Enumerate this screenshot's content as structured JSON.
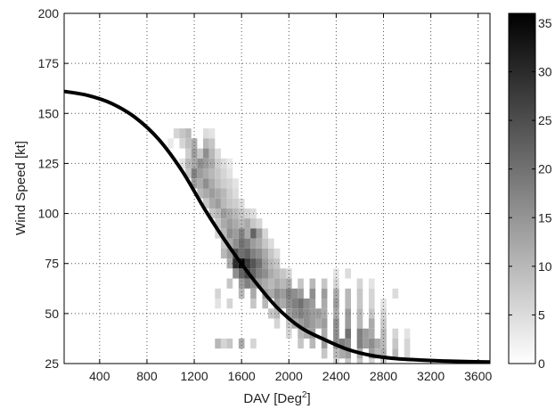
{
  "chart_data": {
    "type": "heatmap",
    "xlabel": "DAV [Deg",
    "xlabel_sup": "2",
    "xlabel_suffix": "]",
    "ylabel": "Wind Speed [kt]",
    "xlim": [
      100,
      3700
    ],
    "ylim": [
      25,
      200
    ],
    "xticks": [
      400,
      800,
      1200,
      1600,
      2000,
      2400,
      2800,
      3200,
      3600
    ],
    "yticks": [
      25,
      50,
      75,
      100,
      125,
      150,
      175,
      200
    ],
    "grid": true,
    "colormap": "gray-reversed",
    "colorbar": {
      "min": 0,
      "max": 36,
      "ticks": [
        0,
        5,
        10,
        15,
        20,
        25,
        30,
        35
      ]
    },
    "heatmap_bin": {
      "dx": 50,
      "dy": 5
    },
    "heatmap_cells": [
      [
        1050,
        140,
        6
      ],
      [
        1100,
        140,
        8
      ],
      [
        1150,
        140,
        10
      ],
      [
        1300,
        140,
        5
      ],
      [
        1350,
        140,
        4
      ],
      [
        1000,
        135,
        3
      ],
      [
        1100,
        135,
        6
      ],
      [
        1150,
        135,
        9
      ],
      [
        1200,
        135,
        12
      ],
      [
        1300,
        135,
        10
      ],
      [
        1350,
        135,
        8
      ],
      [
        1150,
        130,
        7
      ],
      [
        1200,
        130,
        14
      ],
      [
        1250,
        130,
        8
      ],
      [
        1300,
        130,
        16
      ],
      [
        1350,
        130,
        10
      ],
      [
        1400,
        130,
        5
      ],
      [
        1100,
        125,
        4
      ],
      [
        1150,
        125,
        10
      ],
      [
        1200,
        125,
        12
      ],
      [
        1250,
        125,
        16
      ],
      [
        1300,
        125,
        14
      ],
      [
        1350,
        125,
        12
      ],
      [
        1400,
        125,
        7
      ],
      [
        1450,
        125,
        5
      ],
      [
        1500,
        125,
        3
      ],
      [
        1150,
        120,
        8
      ],
      [
        1200,
        120,
        18
      ],
      [
        1250,
        120,
        14
      ],
      [
        1300,
        120,
        12
      ],
      [
        1350,
        120,
        10
      ],
      [
        1400,
        120,
        8
      ],
      [
        1450,
        120,
        6
      ],
      [
        1500,
        120,
        4
      ],
      [
        1200,
        115,
        14
      ],
      [
        1250,
        115,
        12
      ],
      [
        1300,
        115,
        16
      ],
      [
        1350,
        115,
        12
      ],
      [
        1400,
        115,
        9
      ],
      [
        1450,
        115,
        7
      ],
      [
        1500,
        115,
        6
      ],
      [
        1550,
        115,
        4
      ],
      [
        1250,
        110,
        10
      ],
      [
        1300,
        110,
        12
      ],
      [
        1350,
        110,
        14
      ],
      [
        1400,
        110,
        12
      ],
      [
        1450,
        110,
        10
      ],
      [
        1500,
        110,
        7
      ],
      [
        1550,
        110,
        5
      ],
      [
        1300,
        105,
        8
      ],
      [
        1350,
        105,
        12
      ],
      [
        1400,
        105,
        14
      ],
      [
        1450,
        105,
        10
      ],
      [
        1500,
        105,
        8
      ],
      [
        1550,
        105,
        7
      ],
      [
        1600,
        105,
        5
      ],
      [
        1350,
        100,
        8
      ],
      [
        1400,
        100,
        10
      ],
      [
        1450,
        100,
        14
      ],
      [
        1500,
        100,
        12
      ],
      [
        1550,
        100,
        10
      ],
      [
        1600,
        100,
        8
      ],
      [
        1650,
        100,
        6
      ],
      [
        1700,
        100,
        5
      ],
      [
        1400,
        95,
        8
      ],
      [
        1450,
        95,
        12
      ],
      [
        1500,
        95,
        14
      ],
      [
        1550,
        95,
        12
      ],
      [
        1600,
        95,
        10
      ],
      [
        1650,
        95,
        12
      ],
      [
        1700,
        95,
        8
      ],
      [
        1750,
        95,
        6
      ],
      [
        1400,
        90,
        6
      ],
      [
        1450,
        90,
        10
      ],
      [
        1500,
        90,
        16
      ],
      [
        1550,
        90,
        14
      ],
      [
        1600,
        90,
        18
      ],
      [
        1650,
        90,
        12
      ],
      [
        1700,
        90,
        22
      ],
      [
        1750,
        90,
        14
      ],
      [
        1800,
        90,
        6
      ],
      [
        1450,
        85,
        8
      ],
      [
        1500,
        85,
        12
      ],
      [
        1550,
        85,
        16
      ],
      [
        1600,
        85,
        20
      ],
      [
        1650,
        85,
        18
      ],
      [
        1700,
        85,
        14
      ],
      [
        1750,
        85,
        12
      ],
      [
        1800,
        85,
        8
      ],
      [
        1850,
        85,
        5
      ],
      [
        1450,
        80,
        10
      ],
      [
        1500,
        80,
        14
      ],
      [
        1550,
        80,
        24
      ],
      [
        1600,
        80,
        20
      ],
      [
        1650,
        80,
        22
      ],
      [
        1700,
        80,
        18
      ],
      [
        1750,
        80,
        16
      ],
      [
        1800,
        80,
        12
      ],
      [
        1850,
        80,
        8
      ],
      [
        1900,
        80,
        5
      ],
      [
        1500,
        75,
        12
      ],
      [
        1550,
        75,
        30
      ],
      [
        1600,
        75,
        36
      ],
      [
        1650,
        75,
        28
      ],
      [
        1700,
        75,
        24
      ],
      [
        1750,
        75,
        20
      ],
      [
        1800,
        75,
        14
      ],
      [
        1850,
        75,
        10
      ],
      [
        1900,
        75,
        8
      ],
      [
        1550,
        70,
        16
      ],
      [
        1600,
        70,
        22
      ],
      [
        1650,
        70,
        26
      ],
      [
        1700,
        70,
        22
      ],
      [
        1750,
        70,
        18
      ],
      [
        1800,
        70,
        16
      ],
      [
        1850,
        70,
        12
      ],
      [
        1900,
        70,
        10
      ],
      [
        1950,
        70,
        8
      ],
      [
        2000,
        70,
        6
      ],
      [
        2400,
        70,
        4
      ],
      [
        2500,
        70,
        5
      ],
      [
        1500,
        65,
        8
      ],
      [
        1600,
        65,
        14
      ],
      [
        1650,
        65,
        18
      ],
      [
        1700,
        65,
        16
      ],
      [
        1750,
        65,
        14
      ],
      [
        1800,
        65,
        12
      ],
      [
        1850,
        65,
        10
      ],
      [
        1900,
        65,
        12
      ],
      [
        1950,
        65,
        10
      ],
      [
        2000,
        65,
        12
      ],
      [
        2100,
        65,
        8
      ],
      [
        2200,
        65,
        10
      ],
      [
        2300,
        65,
        8
      ],
      [
        2400,
        65,
        6
      ],
      [
        2600,
        65,
        6
      ],
      [
        2700,
        65,
        4
      ],
      [
        1400,
        60,
        6
      ],
      [
        1600,
        60,
        10
      ],
      [
        1700,
        60,
        12
      ],
      [
        1800,
        60,
        14
      ],
      [
        1850,
        60,
        12
      ],
      [
        1900,
        60,
        16
      ],
      [
        1950,
        60,
        14
      ],
      [
        2000,
        60,
        18
      ],
      [
        2050,
        60,
        16
      ],
      [
        2100,
        60,
        14
      ],
      [
        2200,
        60,
        16
      ],
      [
        2300,
        60,
        14
      ],
      [
        2400,
        60,
        12
      ],
      [
        2500,
        60,
        10
      ],
      [
        2600,
        60,
        8
      ],
      [
        2700,
        60,
        6
      ],
      [
        2900,
        60,
        5
      ],
      [
        1400,
        55,
        4
      ],
      [
        1500,
        55,
        6
      ],
      [
        1700,
        55,
        8
      ],
      [
        1800,
        55,
        10
      ],
      [
        1900,
        55,
        14
      ],
      [
        1950,
        55,
        12
      ],
      [
        2000,
        55,
        16
      ],
      [
        2050,
        55,
        18
      ],
      [
        2100,
        55,
        20
      ],
      [
        2150,
        55,
        16
      ],
      [
        2200,
        55,
        14
      ],
      [
        2300,
        55,
        12
      ],
      [
        2400,
        55,
        14
      ],
      [
        2500,
        55,
        10
      ],
      [
        2600,
        55,
        8
      ],
      [
        2700,
        55,
        6
      ],
      [
        2800,
        55,
        4
      ],
      [
        1850,
        50,
        8
      ],
      [
        1900,
        50,
        10
      ],
      [
        2000,
        50,
        14
      ],
      [
        2050,
        50,
        16
      ],
      [
        2100,
        50,
        18
      ],
      [
        2150,
        50,
        16
      ],
      [
        2200,
        50,
        14
      ],
      [
        2250,
        50,
        14
      ],
      [
        2300,
        50,
        12
      ],
      [
        2400,
        50,
        12
      ],
      [
        2500,
        50,
        14
      ],
      [
        2600,
        50,
        10
      ],
      [
        2700,
        50,
        8
      ],
      [
        2800,
        50,
        6
      ],
      [
        1900,
        45,
        6
      ],
      [
        2000,
        45,
        8
      ],
      [
        2050,
        45,
        12
      ],
      [
        2100,
        45,
        14
      ],
      [
        2150,
        45,
        16
      ],
      [
        2200,
        45,
        14
      ],
      [
        2250,
        45,
        12
      ],
      [
        2300,
        45,
        14
      ],
      [
        2400,
        45,
        16
      ],
      [
        2500,
        45,
        14
      ],
      [
        2600,
        45,
        10
      ],
      [
        2700,
        45,
        12
      ],
      [
        2800,
        45,
        8
      ],
      [
        2000,
        40,
        6
      ],
      [
        2100,
        40,
        10
      ],
      [
        2150,
        40,
        12
      ],
      [
        2200,
        40,
        14
      ],
      [
        2300,
        40,
        12
      ],
      [
        2400,
        40,
        16
      ],
      [
        2500,
        40,
        20
      ],
      [
        2600,
        40,
        18
      ],
      [
        2650,
        40,
        14
      ],
      [
        2700,
        40,
        12
      ],
      [
        2800,
        40,
        10
      ],
      [
        2900,
        40,
        6
      ],
      [
        3000,
        40,
        4
      ],
      [
        1400,
        35,
        10
      ],
      [
        1450,
        35,
        6
      ],
      [
        1500,
        35,
        8
      ],
      [
        1600,
        35,
        12
      ],
      [
        1700,
        35,
        6
      ],
      [
        2100,
        35,
        8
      ],
      [
        2200,
        35,
        10
      ],
      [
        2300,
        35,
        14
      ],
      [
        2400,
        35,
        16
      ],
      [
        2450,
        35,
        18
      ],
      [
        2500,
        35,
        16
      ],
      [
        2600,
        35,
        18
      ],
      [
        2650,
        35,
        14
      ],
      [
        2700,
        35,
        16
      ],
      [
        2750,
        35,
        12
      ],
      [
        2800,
        35,
        10
      ],
      [
        2900,
        35,
        8
      ],
      [
        3000,
        35,
        6
      ],
      [
        2300,
        30,
        8
      ],
      [
        2400,
        30,
        10
      ],
      [
        2450,
        30,
        12
      ],
      [
        2500,
        30,
        14
      ],
      [
        2600,
        30,
        12
      ],
      [
        2700,
        30,
        14
      ],
      [
        2750,
        30,
        10
      ],
      [
        2800,
        30,
        12
      ],
      [
        2900,
        30,
        10
      ],
      [
        3000,
        30,
        6
      ],
      [
        2400,
        25,
        6
      ],
      [
        2500,
        25,
        8
      ],
      [
        2600,
        25,
        8
      ],
      [
        2700,
        25,
        6
      ],
      [
        2800,
        25,
        8
      ]
    ],
    "series": [
      {
        "type": "line",
        "color": "#000000",
        "x": [
          100,
          300,
          500,
          700,
          900,
          1100,
          1300,
          1500,
          1700,
          1900,
          2100,
          2300,
          2500,
          2700,
          2900,
          3100,
          3300,
          3500,
          3700
        ],
        "y": [
          161,
          159,
          155,
          148,
          137,
          121,
          101,
          83,
          67,
          53,
          43,
          37,
          32,
          29,
          27.5,
          26.8,
          26.3,
          26,
          25.8
        ]
      }
    ]
  }
}
